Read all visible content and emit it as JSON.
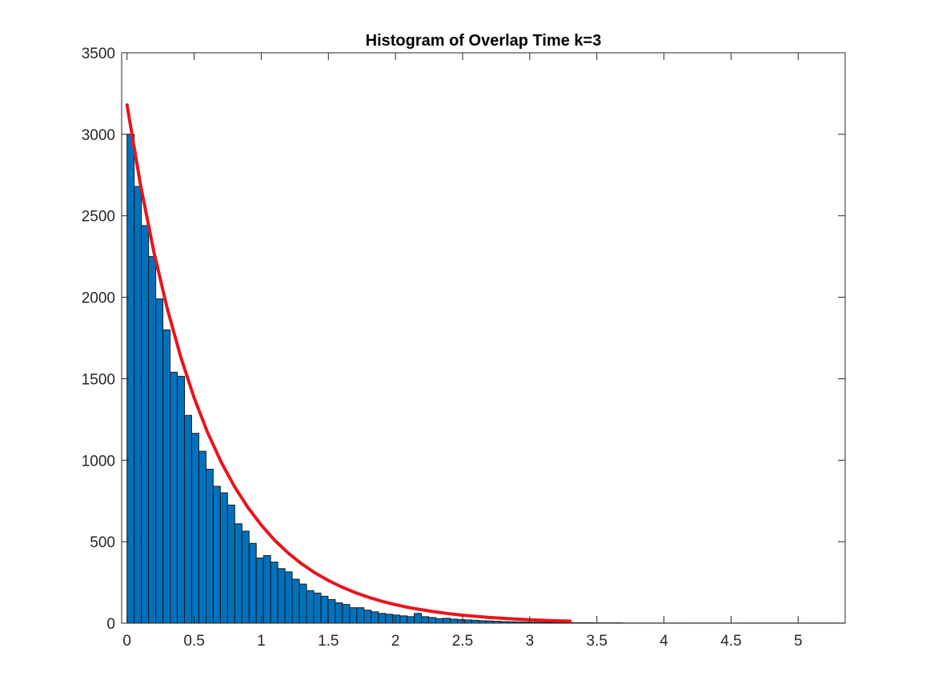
{
  "chart_data": {
    "type": "bar",
    "title": "Histogram of Overlap Time k=3",
    "xlabel": "",
    "ylabel": "",
    "xlim": [
      -0.04,
      5.35
    ],
    "ylim": [
      0,
      3500
    ],
    "xticks": [
      0,
      0.5,
      1,
      1.5,
      2,
      2.5,
      3,
      3.5,
      4,
      4.5,
      5
    ],
    "xtick_labels": [
      "0",
      "0.5",
      "1",
      "1.5",
      "2",
      "2.5",
      "3",
      "3.5",
      "4",
      "4.5",
      "5"
    ],
    "yticks": [
      0,
      500,
      1000,
      1500,
      2000,
      2500,
      3000,
      3500
    ],
    "ytick_labels": [
      "0",
      "500",
      "1000",
      "1500",
      "2000",
      "2500",
      "3000",
      "3500"
    ],
    "grid": false,
    "bin_start": 0,
    "bin_width": 0.0535,
    "counts": [
      3000,
      2680,
      2440,
      2250,
      1990,
      1800,
      1540,
      1515,
      1275,
      1165,
      1055,
      945,
      840,
      800,
      725,
      610,
      565,
      490,
      400,
      415,
      375,
      335,
      315,
      270,
      240,
      200,
      185,
      165,
      145,
      125,
      115,
      95,
      95,
      80,
      70,
      60,
      55,
      50,
      45,
      40,
      60,
      40,
      35,
      28,
      30,
      25,
      22,
      20,
      18,
      15,
      14,
      12,
      10,
      9,
      8,
      7,
      6,
      6,
      5,
      5,
      4,
      4,
      3,
      3,
      3,
      2,
      2,
      2,
      2,
      1,
      1,
      1,
      1,
      1,
      1,
      1,
      1,
      1,
      1,
      1,
      1,
      1,
      1,
      1,
      1,
      1,
      1,
      1,
      1,
      1,
      1,
      1,
      1,
      1,
      1,
      1,
      1,
      1,
      1,
      1
    ],
    "fit_curve": {
      "x": [
        0,
        0.1,
        0.2,
        0.3,
        0.4,
        0.5,
        0.6,
        0.7,
        0.8,
        0.9,
        1.0,
        1.1,
        1.2,
        1.3,
        1.4,
        1.5,
        1.6,
        1.7,
        1.8,
        1.9,
        2.0,
        2.1,
        2.2,
        2.3,
        2.4,
        2.5,
        2.6,
        2.7,
        2.8,
        2.9,
        3.0,
        3.1,
        3.2,
        3.3
      ],
      "y": [
        3180,
        2692,
        2279,
        1930,
        1634,
        1383,
        1171,
        991,
        839,
        711,
        602,
        509,
        431,
        365,
        309,
        262,
        222,
        188,
        159,
        134,
        114,
        96,
        82,
        69,
        58,
        49,
        42,
        35,
        30,
        25,
        21,
        18,
        15,
        13
      ]
    },
    "colors": {
      "bar_fill": "#0072BD",
      "bar_edge": "#1a1a1a",
      "fit_line": "#E8141C",
      "axis": "#262626"
    }
  }
}
